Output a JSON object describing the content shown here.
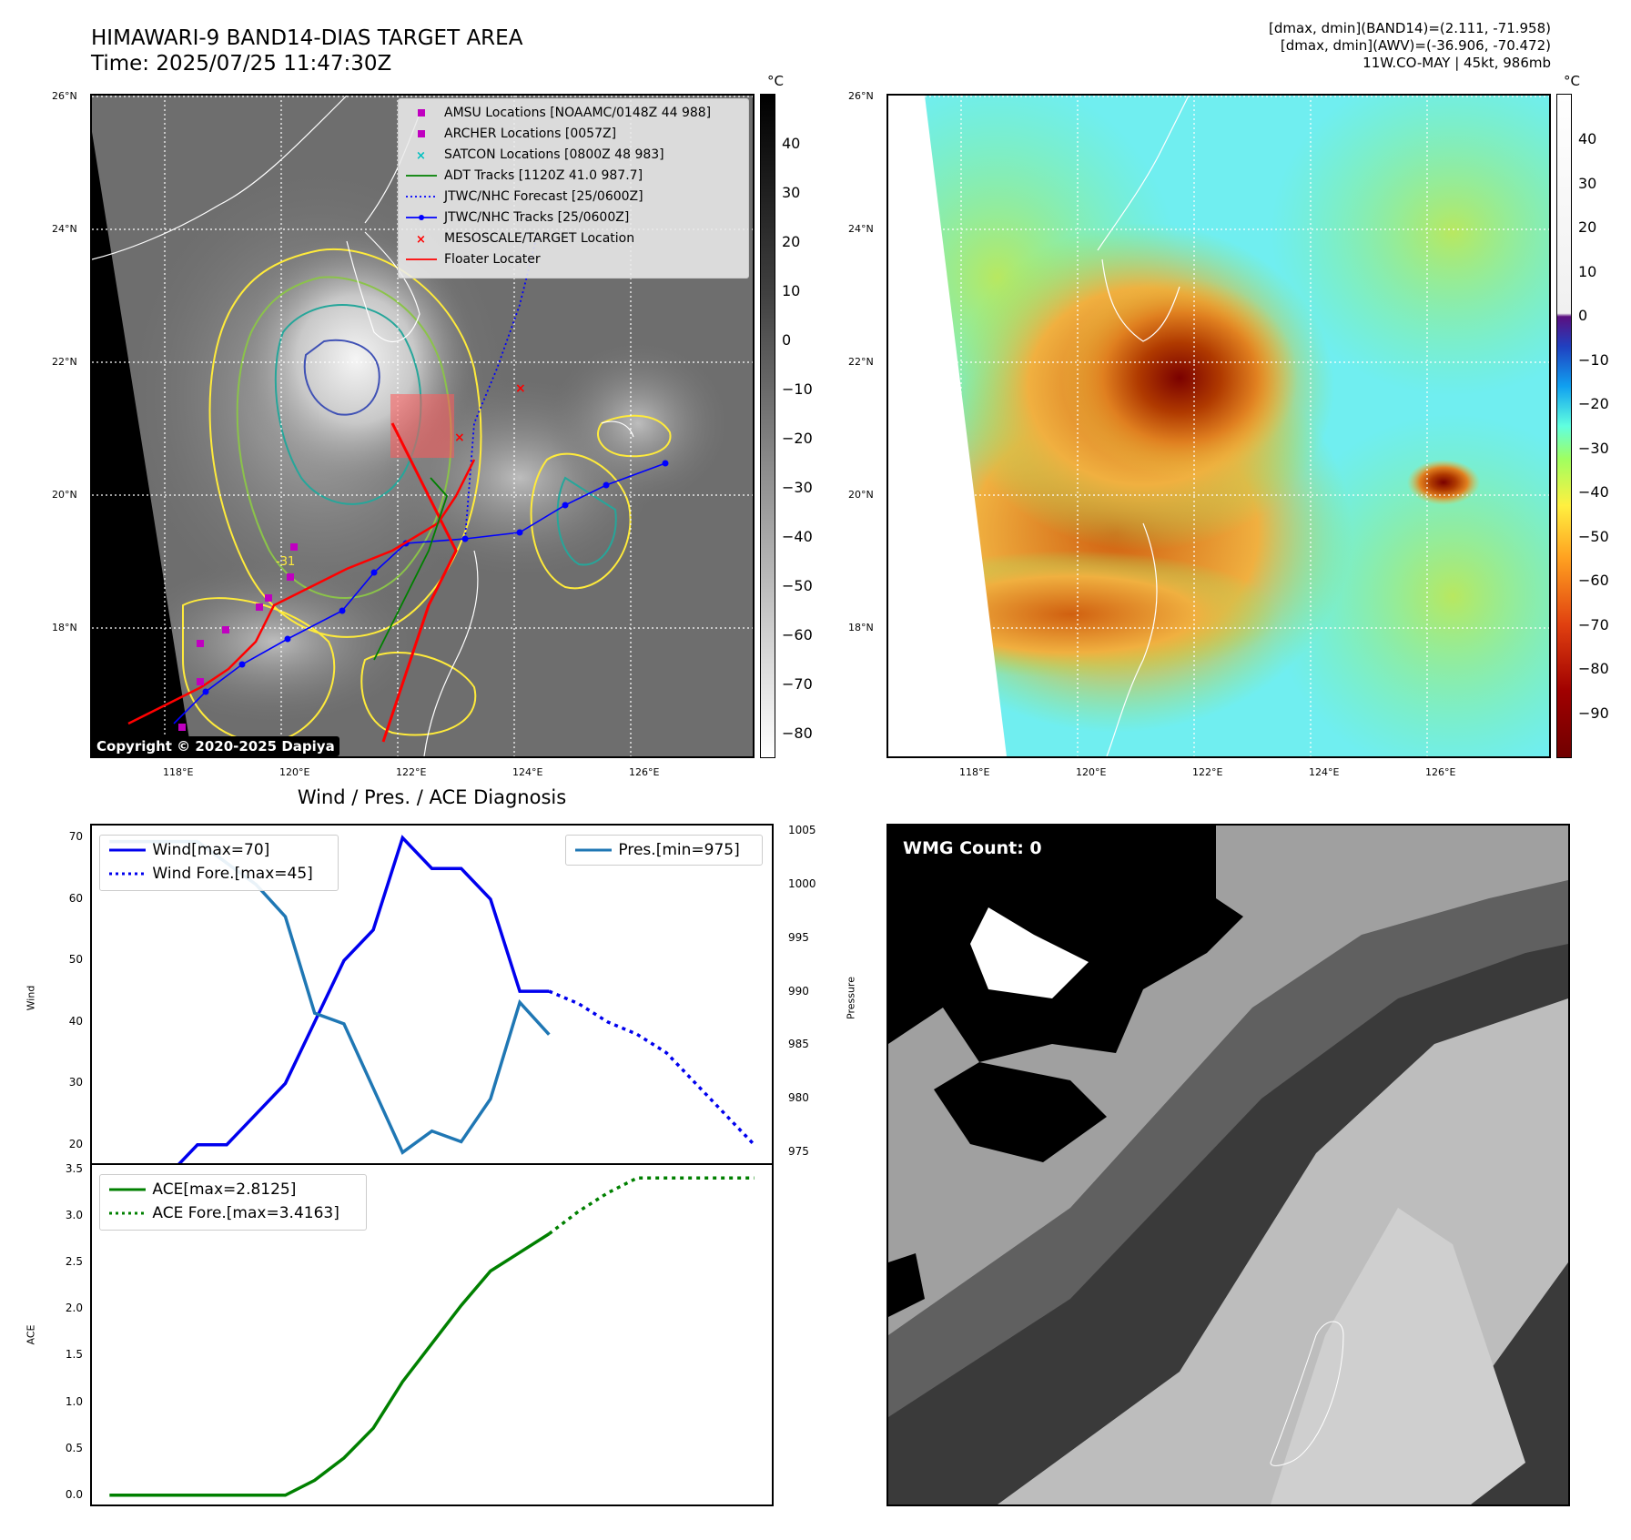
{
  "header": {
    "title_line1": "HIMAWARI-9 BAND14-DIAS TARGET AREA",
    "title_line2": "Time: 2025/07/25 11:47:30Z",
    "info_line1": "[dmax, dmin](BAND14)=(2.111, -71.958)",
    "info_line2": "[dmax, dmin](AWV)=(-36.906, -70.472)",
    "info_line3": "11W.CO-MAY | 45kt, 986mb"
  },
  "map_axes": {
    "lat_ticks": [
      "26°N",
      "24°N",
      "22°N",
      "20°N",
      "18°N"
    ],
    "lon_ticks": [
      "118°E",
      "120°E",
      "122°E",
      "124°E",
      "126°E"
    ]
  },
  "ir_panel": {
    "colorbar_unit": "°C",
    "colorbar_ticks": [
      "40",
      "30",
      "20",
      "10",
      "0",
      "−10",
      "−20",
      "−30",
      "−40",
      "−50",
      "−60",
      "−70",
      "−80"
    ],
    "copyright": "Copyright © 2020-2025 Dapiya",
    "contour_label": "-31",
    "legend": [
      {
        "label": "AMSU Locations [NOAAMC/0148Z 44 988]",
        "color": "#c000c0",
        "marker": "square"
      },
      {
        "label": "ARCHER Locations [0057Z]",
        "color": "#c000c0",
        "marker": "square"
      },
      {
        "label": "SATCON Locations [0800Z 48 983]",
        "color": "#00c0c0",
        "marker": "x"
      },
      {
        "label": "ADT Tracks [1120Z 41.0 987.7]",
        "color": "#008000",
        "marker": "line"
      },
      {
        "label": "JTWC/NHC Forecast [25/0600Z]",
        "color": "#0000ff",
        "marker": "dotted"
      },
      {
        "label": "JTWC/NHC Tracks [25/0600Z]",
        "color": "#0000ff",
        "marker": "line-dot"
      },
      {
        "label": "MESOSCALE/TARGET Location",
        "color": "#ff0000",
        "marker": "x"
      },
      {
        "label": "Floater Locater",
        "color": "#ff0000",
        "marker": "line"
      }
    ]
  },
  "awv_panel": {
    "colorbar_unit": "°C",
    "colorbar_ticks": [
      "40",
      "30",
      "20",
      "10",
      "0",
      "−10",
      "−20",
      "−30",
      "−40",
      "−50",
      "−60",
      "−70",
      "−80",
      "−90"
    ]
  },
  "wmg_panel": {
    "count_label": "WMG Count: 0"
  },
  "chart_data": [
    {
      "type": "line",
      "title": "Wind / Pres. / ACE Diagnosis",
      "ylabel": "Wind",
      "y2label": "Pressure",
      "ylim": [
        17,
        72
      ],
      "y2lim": [
        974,
        1005.5
      ],
      "yticks": [
        "70",
        "60",
        "50",
        "40",
        "30",
        "20"
      ],
      "y2ticks": [
        "1005",
        "1000",
        "995",
        "990",
        "985",
        "980",
        "975"
      ],
      "x": [
        0,
        1,
        2,
        3,
        4,
        5,
        6,
        7,
        8,
        9,
        10,
        11,
        12,
        13,
        14,
        15,
        16,
        17,
        18,
        19,
        20,
        21,
        22
      ],
      "series": [
        {
          "name": "Wind[max=70]",
          "color": "#0000ee",
          "style": "solid",
          "x": [
            0,
            1,
            2,
            3,
            4,
            5,
            6,
            7,
            8,
            9,
            10,
            11,
            12,
            13,
            14,
            15
          ],
          "values": [
            15,
            15,
            15,
            20,
            20,
            25,
            30,
            40,
            50,
            55,
            70,
            65,
            65,
            60,
            45,
            45
          ]
        },
        {
          "name": "Wind Fore.[max=45]",
          "color": "#0000ee",
          "style": "dotted",
          "x": [
            15,
            16,
            17,
            18,
            19,
            20,
            21,
            22
          ],
          "values": [
            45,
            43,
            40,
            38,
            35,
            30,
            25,
            20
          ]
        },
        {
          "name": "Pres.[min=975]",
          "color": "#1f77b4",
          "style": "solid",
          "axis": "right",
          "x": [
            0,
            1,
            2,
            3,
            4,
            5,
            6,
            7,
            8,
            9,
            10,
            11,
            12,
            13,
            14,
            15
          ],
          "values": [
            1004,
            1004,
            1004,
            1004,
            1002,
            1000,
            997,
            988,
            987,
            981,
            975,
            977,
            976,
            980,
            989,
            986
          ]
        }
      ]
    },
    {
      "type": "line",
      "ylabel": "ACE",
      "ylim": [
        -0.1,
        3.55
      ],
      "yticks": [
        "3.5",
        "3.0",
        "2.5",
        "2.0",
        "1.5",
        "1.0",
        "0.5",
        "0.0"
      ],
      "x": [
        0,
        1,
        2,
        3,
        4,
        5,
        6,
        7,
        8,
        9,
        10,
        11,
        12,
        13,
        14,
        15,
        16,
        17,
        18,
        19,
        20,
        21,
        22
      ],
      "series": [
        {
          "name": "ACE[max=2.8125]",
          "color": "#008000",
          "style": "solid",
          "x": [
            0,
            1,
            2,
            3,
            4,
            5,
            6,
            7,
            8,
            9,
            10,
            11,
            12,
            13,
            14,
            15
          ],
          "values": [
            0,
            0,
            0,
            0,
            0,
            0,
            0,
            0.16,
            0.4,
            0.72,
            1.22,
            1.63,
            2.04,
            2.41,
            2.61,
            2.81
          ]
        },
        {
          "name": "ACE Fore.[max=3.4163]",
          "color": "#008000",
          "style": "dotted",
          "x": [
            15,
            16,
            17,
            18,
            19,
            20,
            21,
            22
          ],
          "values": [
            2.81,
            3.05,
            3.25,
            3.41,
            3.41,
            3.41,
            3.41,
            3.41
          ]
        }
      ]
    }
  ]
}
